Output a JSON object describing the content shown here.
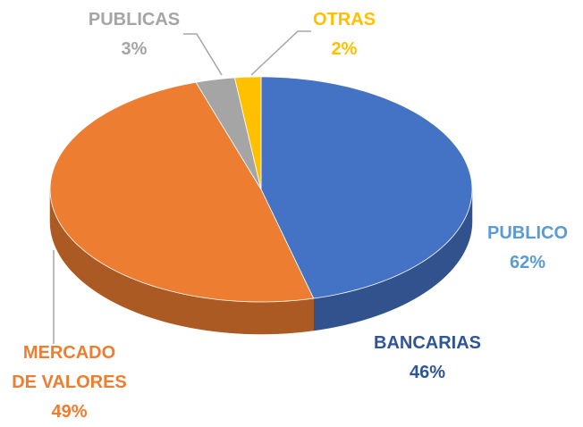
{
  "chart_data": {
    "type": "pie3d",
    "categories": [
      "BANCARIAS",
      "MERCADO DE VALORES",
      "PUBLICAS",
      "OTRAS"
    ],
    "values": [
      46,
      49,
      3,
      2
    ],
    "value_labels": [
      "46%",
      "49%",
      "3%",
      "2%"
    ],
    "colors": [
      "#4472c4",
      "#ed7d31",
      "#a5a5a5",
      "#ffc000"
    ],
    "label_colors": [
      "#2f5597",
      "#ed7d31",
      "#a5a5a5",
      "#ffc000"
    ],
    "annotation": {
      "name": "PUBLICO",
      "value_label": "62%",
      "color": "#5b9bd5"
    }
  }
}
